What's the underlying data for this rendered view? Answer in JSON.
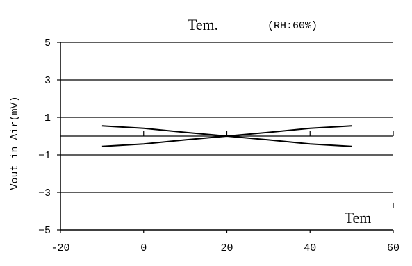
{
  "chart_data": {
    "type": "line",
    "title": "Tem.",
    "subtitle": "(RH:60%)",
    "ylabel": "Vout in Air(mV)",
    "xlabel": "",
    "plot_annotation": "Tem",
    "xlim": [
      -20,
      60
    ],
    "ylim": [
      -5,
      5
    ],
    "x_ticks": [
      -20,
      0,
      20,
      40,
      60
    ],
    "y_ticks": [
      5,
      3,
      1,
      -1,
      -3,
      -5
    ],
    "x_tick_labels": [
      "-20",
      "0",
      "20",
      "40",
      "60"
    ],
    "y_tick_labels": [
      "5",
      "3",
      "1",
      "−1",
      "−3",
      "−5"
    ],
    "x_minor_ticks": [
      0,
      20,
      40
    ],
    "gridlines_y": [
      5,
      3,
      1,
      0,
      -1,
      -3
    ],
    "grid": true,
    "legend": "none",
    "colors": {
      "line": "#000000",
      "grid": "#000000",
      "text": "#000000"
    },
    "series": [
      {
        "x": [
          -10,
          0,
          10,
          20,
          30,
          40,
          50
        ],
        "values": [
          0.55,
          0.42,
          0.2,
          0.0,
          0.2,
          0.42,
          0.55
        ]
      },
      {
        "x": [
          -10,
          0,
          10,
          20,
          30,
          40,
          50
        ],
        "values": [
          -0.55,
          -0.42,
          -0.2,
          0.0,
          -0.2,
          -0.42,
          -0.55
        ]
      }
    ]
  }
}
